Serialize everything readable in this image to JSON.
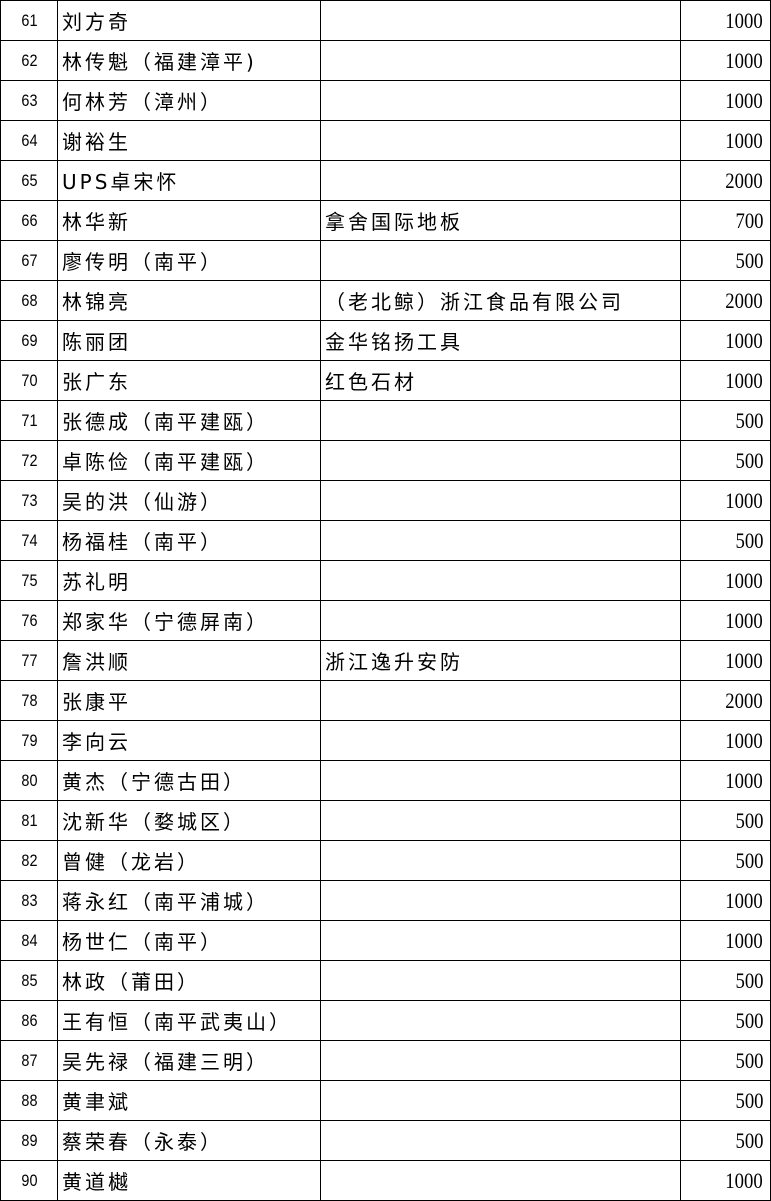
{
  "rows": [
    {
      "no": "61",
      "name": "刘方奇",
      "org": "",
      "amount": "1000"
    },
    {
      "no": "62",
      "name": "林传魁（福建漳平)",
      "org": "",
      "amount": "1000"
    },
    {
      "no": "63",
      "name": "何林芳（漳州）",
      "org": "",
      "amount": "1000"
    },
    {
      "no": "64",
      "name": "谢裕生",
      "org": "",
      "amount": "1000"
    },
    {
      "no": "65",
      "name": "UPS卓宋怀",
      "org": "",
      "amount": "2000"
    },
    {
      "no": "66",
      "name": "林华新",
      "org": "拿舍国际地板",
      "amount": "700"
    },
    {
      "no": "67",
      "name": "廖传明（南平）",
      "org": "",
      "amount": "500"
    },
    {
      "no": "68",
      "name": "林锦亮",
      "org": "（老北鲸）浙江食品有限公司",
      "amount": "2000"
    },
    {
      "no": "69",
      "name": "陈丽团",
      "org": "金华铭扬工具",
      "amount": "1000"
    },
    {
      "no": "70",
      "name": "张广东",
      "org": "红色石材",
      "amount": "1000"
    },
    {
      "no": "71",
      "name": "张德成（南平建瓯）",
      "org": "",
      "amount": "500"
    },
    {
      "no": "72",
      "name": "卓陈俭（南平建瓯）",
      "org": "",
      "amount": "500"
    },
    {
      "no": "73",
      "name": "吴的洪（仙游）",
      "org": "",
      "amount": "1000"
    },
    {
      "no": "74",
      "name": "杨福桂（南平）",
      "org": "",
      "amount": "500"
    },
    {
      "no": "75",
      "name": "苏礼明",
      "org": "",
      "amount": "1000"
    },
    {
      "no": "76",
      "name": "郑家华（宁德屏南）",
      "org": "",
      "amount": "1000"
    },
    {
      "no": "77",
      "name": "詹洪顺",
      "org": "浙江逸升安防",
      "amount": "1000"
    },
    {
      "no": "78",
      "name": "张康平",
      "org": "",
      "amount": "2000"
    },
    {
      "no": "79",
      "name": "李向云",
      "org": "",
      "amount": "1000"
    },
    {
      "no": "80",
      "name": "黄杰（宁德古田）",
      "org": "",
      "amount": "1000"
    },
    {
      "no": "81",
      "name": "沈新华（婺城区）",
      "org": "",
      "amount": "500"
    },
    {
      "no": "82",
      "name": "曾健（龙岩）",
      "org": "",
      "amount": "500"
    },
    {
      "no": "83",
      "name": "蒋永红（南平浦城）",
      "org": "",
      "amount": "1000"
    },
    {
      "no": "84",
      "name": "杨世仁（南平）",
      "org": "",
      "amount": "1000"
    },
    {
      "no": "85",
      "name": "林政（莆田）",
      "org": "",
      "amount": "500"
    },
    {
      "no": "86",
      "name": "王有恒（南平武夷山）",
      "org": "",
      "amount": "500"
    },
    {
      "no": "87",
      "name": "吴先禄（福建三明）",
      "org": "",
      "amount": "500"
    },
    {
      "no": "88",
      "name": "黄聿斌",
      "org": "",
      "amount": "500"
    },
    {
      "no": "89",
      "name": "蔡荣春（永泰）",
      "org": "",
      "amount": "500"
    },
    {
      "no": "90",
      "name": "黄道樾",
      "org": "",
      "amount": "1000"
    }
  ]
}
